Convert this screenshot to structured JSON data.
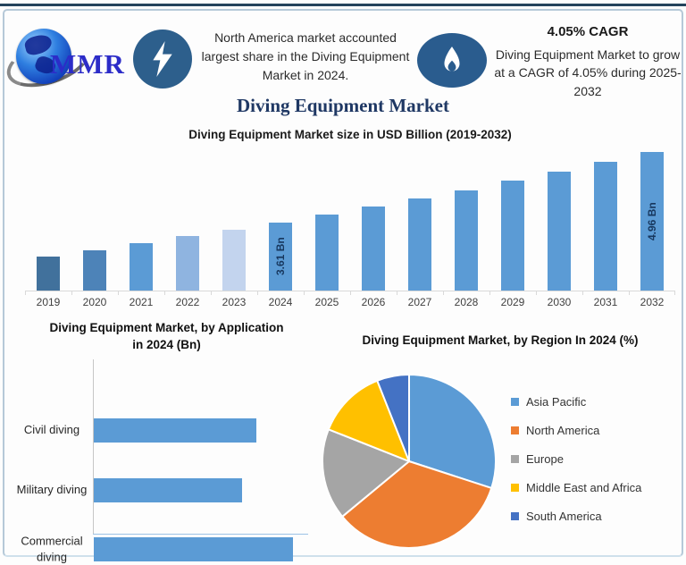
{
  "header": {
    "logo_text": "MMR",
    "highlight_note": "North America market accounted largest share in the Diving Equipment Market in 2024.",
    "cagr_title": "4.05% CAGR",
    "cagr_text": "Diving Equipment Market to grow at a CAGR of 4.05% during 2025-2032"
  },
  "page_title": "Diving Equipment Market",
  "colors": {
    "primary_blue": "#5B9BD5",
    "dark_navy": "#1F3864",
    "top_bar": "#24435C",
    "badge_blue": "#2D5F8C",
    "axis_gray": "#D9D9D9",
    "label_navy": "#17375E"
  },
  "chart_data": [
    {
      "id": "market-size",
      "type": "bar",
      "title": "Diving Equipment Market size in USD Billion (2019-2032)",
      "categories": [
        "2019",
        "2020",
        "2021",
        "2022",
        "2023",
        "2024",
        "2025",
        "2026",
        "2027",
        "2028",
        "2029",
        "2030",
        "2031",
        "2032"
      ],
      "values": [
        2.96,
        3.08,
        3.21,
        3.34,
        3.47,
        3.61,
        3.76,
        3.91,
        4.07,
        4.23,
        4.41,
        4.58,
        4.77,
        4.96
      ],
      "unit": "USD Bn",
      "ylim": [
        2.3,
        5.05
      ],
      "grid": false,
      "bar_colors": [
        "#41719C",
        "#4D83B8",
        "#5B9BD5",
        "#8FB4E0",
        "#C3D4EE",
        "#5B9BD5",
        "#5B9BD5",
        "#5B9BD5",
        "#5B9BD5",
        "#5B9BD5",
        "#5B9BD5",
        "#5B9BD5",
        "#5B9BD5",
        "#5B9BD5"
      ],
      "data_labels": {
        "2024": "3.61 Bn",
        "2032": "4.96 Bn"
      }
    },
    {
      "id": "by-application",
      "type": "bar",
      "orientation": "horizontal",
      "title": "Diving Equipment Market, by Application in 2024 (Bn)",
      "categories": [
        "Civil diving",
        "Military diving",
        "Commercial diving"
      ],
      "values": [
        1.15,
        1.05,
        1.41
      ],
      "xlim": [
        0,
        1.5
      ],
      "bar_color": "#5B9BD5"
    },
    {
      "id": "by-region",
      "type": "pie",
      "title": "Diving Equipment Market, by Region In 2024 (%)",
      "legend_position": "right",
      "slices": [
        {
          "label": "Asia Pacific",
          "value": 30,
          "color": "#5B9BD5"
        },
        {
          "label": "North America",
          "value": 34,
          "color": "#ED7D31"
        },
        {
          "label": "Europe",
          "value": 17,
          "color": "#A5A5A5"
        },
        {
          "label": "Middle East and Africa",
          "value": 13,
          "color": "#FFC000"
        },
        {
          "label": "South America",
          "value": 6,
          "color": "#4472C4"
        }
      ]
    }
  ]
}
